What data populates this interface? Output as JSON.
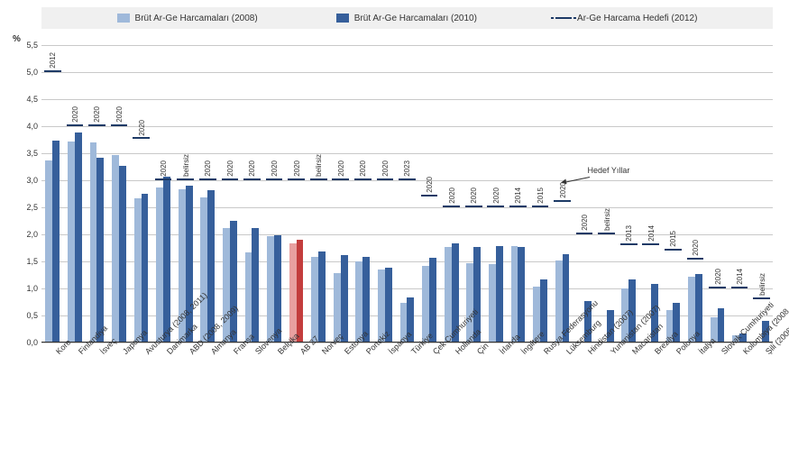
{
  "chart": {
    "type": "bar",
    "y_label": "%",
    "ylim": [
      0,
      5.5
    ],
    "ytick_step": 0.5,
    "background_color": "#ffffff",
    "grid_color": "#c9c9c9",
    "legend_bg": "#f0f0f0",
    "series": {
      "s2008": {
        "label": "Brüt Ar-Ge Harcamaları (2008)",
        "color": "#9fb9da"
      },
      "s2010": {
        "label": "Brüt Ar-Ge Harcamaları (2010)",
        "color": "#365f9b"
      },
      "target": {
        "label": "Ar-Ge Harcama Hedefi (2012)",
        "color": "#1d3a66"
      }
    },
    "highlight_colors": {
      "s2008": "#e8a0a0",
      "s2010": "#c33d3d"
    },
    "annotation_label": "Hedef Yıllar",
    "annotation_points_to_index": 23,
    "categories": [
      {
        "label": "Kore",
        "v2008": 3.36,
        "v2010": 3.74,
        "target": 5.0,
        "year": "2012"
      },
      {
        "label": "Finlandiya",
        "v2008": 3.72,
        "v2010": 3.88,
        "target": 4.0,
        "year": "2020"
      },
      {
        "label": "İsveç",
        "v2008": 3.7,
        "v2010": 3.42,
        "target": 4.0,
        "year": "2020"
      },
      {
        "label": "Japonya",
        "v2008": 3.47,
        "v2010": 3.26,
        "target": 4.0,
        "year": "2020"
      },
      {
        "label": "Avusturya (2008, 2011)",
        "v2008": 2.67,
        "v2010": 2.75,
        "target": 3.76,
        "year": "2020"
      },
      {
        "label": "Danimarka",
        "v2008": 2.87,
        "v2010": 3.06,
        "target": 3.0,
        "year": "2020"
      },
      {
        "label": "ABD (2008, 2009)",
        "v2008": 2.84,
        "v2010": 2.9,
        "target": 3.0,
        "year": "belirsiz"
      },
      {
        "label": "Almanya",
        "v2008": 2.69,
        "v2010": 2.82,
        "target": 3.0,
        "year": "2020"
      },
      {
        "label": "Fransa",
        "v2008": 2.12,
        "v2010": 2.25,
        "target": 3.0,
        "year": "2020"
      },
      {
        "label": "Slovenya",
        "v2008": 1.66,
        "v2010": 2.11,
        "target": 3.0,
        "year": "2020"
      },
      {
        "label": "Belçika",
        "v2008": 1.97,
        "v2010": 1.99,
        "target": 3.0,
        "year": "2020"
      },
      {
        "label": "AB 27",
        "v2008": 1.84,
        "v2010": 1.9,
        "target": 3.0,
        "year": "2020",
        "highlight": true
      },
      {
        "label": "Norveç",
        "v2008": 1.58,
        "v2010": 1.69,
        "target": 3.0,
        "year": "belirsiz"
      },
      {
        "label": "Estonya",
        "v2008": 1.28,
        "v2010": 1.62,
        "target": 3.0,
        "year": "2020"
      },
      {
        "label": "Portekiz",
        "v2008": 1.5,
        "v2010": 1.59,
        "target": 3.0,
        "year": "2020"
      },
      {
        "label": "İspanya",
        "v2008": 1.35,
        "v2010": 1.39,
        "target": 3.0,
        "year": "2020"
      },
      {
        "label": "Türkiye",
        "v2008": 0.73,
        "v2010": 0.84,
        "target": 3.0,
        "year": "2023"
      },
      {
        "label": "Çek Cumhuriyeti",
        "v2008": 1.41,
        "v2010": 1.56,
        "target": 2.7,
        "year": "2020"
      },
      {
        "label": "Hollanda",
        "v2008": 1.77,
        "v2010": 1.83,
        "target": 2.5,
        "year": "2020"
      },
      {
        "label": "Çin",
        "v2008": 1.47,
        "v2010": 1.77,
        "target": 2.5,
        "year": "2020"
      },
      {
        "label": "İrlanda",
        "v2008": 1.45,
        "v2010": 1.79,
        "target": 2.5,
        "year": "2020"
      },
      {
        "label": "İngiltere",
        "v2008": 1.79,
        "v2010": 1.76,
        "target": 2.5,
        "year": "2014"
      },
      {
        "label": "Rusya Federasyonu",
        "v2008": 1.04,
        "v2010": 1.16,
        "target": 2.5,
        "year": "2015"
      },
      {
        "label": "Lüksemburg",
        "v2008": 1.51,
        "v2010": 1.63,
        "target": 2.6,
        "year": "2020"
      },
      {
        "label": "Hindistan (2007)",
        "v2008": null,
        "v2010": 0.76,
        "target": 2.0,
        "year": "2020"
      },
      {
        "label": "Yunanistan (2007)",
        "v2008": null,
        "v2010": 0.6,
        "target": 2.0,
        "year": "belirsiz"
      },
      {
        "label": "Macaristan",
        "v2008": 1.0,
        "v2010": 1.16,
        "target": 1.8,
        "year": "2013"
      },
      {
        "label": "Brezilya",
        "v2008": null,
        "v2010": 1.09,
        "target": 1.8,
        "year": "2014"
      },
      {
        "label": "Polonya",
        "v2008": 0.6,
        "v2010": 0.74,
        "target": 1.7,
        "year": "2015"
      },
      {
        "label": "İtalya",
        "v2008": 1.21,
        "v2010": 1.26,
        "target": 1.53,
        "year": "2020"
      },
      {
        "label": "Slovak Cumhuriyeti",
        "v2008": 0.47,
        "v2010": 0.63,
        "target": 1.0,
        "year": "2020"
      },
      {
        "label": "Kolombiya (2008, 2009)",
        "v2008": 0.14,
        "v2010": 0.16,
        "target": 1.0,
        "year": "2014"
      },
      {
        "label": "Şili (2008)",
        "v2008": null,
        "v2010": 0.4,
        "target": 0.8,
        "year": "belirsiz"
      }
    ]
  }
}
